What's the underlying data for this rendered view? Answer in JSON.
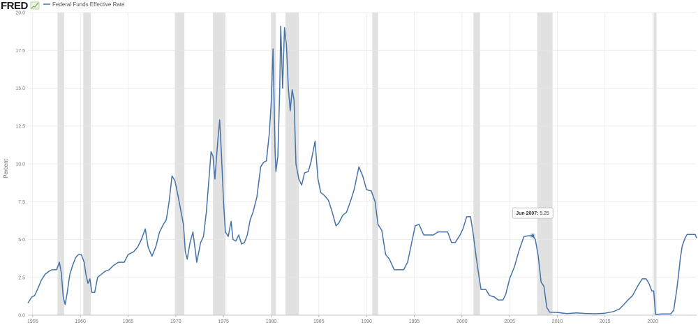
{
  "brand": {
    "logo_text": "FRED",
    "logo_icon": "fred-chart-sparkline-icon"
  },
  "colors": {
    "line": "#4572a7",
    "recession": "#e1e1e1",
    "grid": "#e6e6e6",
    "tooltip_border": "#aaaaaa"
  },
  "tooltip": {
    "label": "Jun 2007:",
    "value": "5.25",
    "x": 2007.42,
    "y": 5.25
  },
  "chart_data": {
    "type": "line",
    "title": "",
    "xlabel": "",
    "ylabel": "Percent",
    "xlim": [
      1954.5,
      2024.6
    ],
    "ylim": [
      0,
      20
    ],
    "yticks": [
      "0.0",
      "2.5",
      "5.0",
      "7.5",
      "10.0",
      "12.5",
      "15.0",
      "17.5",
      "20.0"
    ],
    "xticks": [
      "1955",
      "1960",
      "1965",
      "1970",
      "1975",
      "1980",
      "1985",
      "1990",
      "1995",
      "2000",
      "2005",
      "2010",
      "2015",
      "2020"
    ],
    "grid": true,
    "legend": "top-left",
    "recessions": [
      [
        1957.6,
        1958.3
      ],
      [
        1960.3,
        1961.1
      ],
      [
        1969.9,
        1970.9
      ],
      [
        1973.9,
        1975.2
      ],
      [
        1980.0,
        1980.5
      ],
      [
        1981.5,
        1982.9
      ],
      [
        1990.6,
        1991.2
      ],
      [
        2001.2,
        2001.9
      ],
      [
        2007.9,
        2009.5
      ],
      [
        2020.1,
        2020.4
      ]
    ],
    "series": [
      {
        "name": "Federal Funds Effective Rate",
        "points": [
          [
            1954.5,
            0.8
          ],
          [
            1954.9,
            1.2
          ],
          [
            1955.2,
            1.3
          ],
          [
            1955.5,
            1.7
          ],
          [
            1955.9,
            2.3
          ],
          [
            1956.3,
            2.7
          ],
          [
            1956.7,
            2.9
          ],
          [
            1957.0,
            3.0
          ],
          [
            1957.5,
            3.0
          ],
          [
            1957.8,
            3.5
          ],
          [
            1958.0,
            2.8
          ],
          [
            1958.2,
            1.2
          ],
          [
            1958.4,
            0.7
          ],
          [
            1958.6,
            1.4
          ],
          [
            1958.9,
            2.7
          ],
          [
            1959.2,
            3.3
          ],
          [
            1959.5,
            3.8
          ],
          [
            1959.8,
            4.0
          ],
          [
            1960.1,
            4.0
          ],
          [
            1960.4,
            3.5
          ],
          [
            1960.6,
            2.6
          ],
          [
            1960.8,
            2.1
          ],
          [
            1961.0,
            2.4
          ],
          [
            1961.2,
            1.5
          ],
          [
            1961.5,
            1.5
          ],
          [
            1961.8,
            2.5
          ],
          [
            1962.2,
            2.7
          ],
          [
            1962.6,
            2.9
          ],
          [
            1963.0,
            3.0
          ],
          [
            1963.5,
            3.3
          ],
          [
            1964.0,
            3.5
          ],
          [
            1964.6,
            3.5
          ],
          [
            1965.0,
            4.0
          ],
          [
            1965.6,
            4.2
          ],
          [
            1966.0,
            4.5
          ],
          [
            1966.4,
            5.0
          ],
          [
            1966.8,
            5.7
          ],
          [
            1967.1,
            4.5
          ],
          [
            1967.5,
            3.9
          ],
          [
            1967.9,
            4.5
          ],
          [
            1968.3,
            5.5
          ],
          [
            1968.7,
            6.0
          ],
          [
            1969.0,
            6.3
          ],
          [
            1969.3,
            7.5
          ],
          [
            1969.6,
            9.2
          ],
          [
            1969.9,
            8.9
          ],
          [
            1970.2,
            8.0
          ],
          [
            1970.5,
            7.0
          ],
          [
            1970.8,
            6.0
          ],
          [
            1971.0,
            4.2
          ],
          [
            1971.2,
            3.7
          ],
          [
            1971.5,
            4.8
          ],
          [
            1971.8,
            5.5
          ],
          [
            1972.0,
            4.5
          ],
          [
            1972.2,
            3.5
          ],
          [
            1972.6,
            4.8
          ],
          [
            1972.9,
            5.2
          ],
          [
            1973.2,
            6.8
          ],
          [
            1973.5,
            9.2
          ],
          [
            1973.7,
            10.8
          ],
          [
            1973.9,
            10.5
          ],
          [
            1974.1,
            9.0
          ],
          [
            1974.4,
            11.5
          ],
          [
            1974.6,
            12.9
          ],
          [
            1974.8,
            10.5
          ],
          [
            1975.0,
            7.5
          ],
          [
            1975.2,
            5.5
          ],
          [
            1975.5,
            5.2
          ],
          [
            1975.8,
            6.2
          ],
          [
            1976.0,
            5.0
          ],
          [
            1976.3,
            4.9
          ],
          [
            1976.6,
            5.3
          ],
          [
            1976.9,
            4.7
          ],
          [
            1977.2,
            4.8
          ],
          [
            1977.5,
            5.3
          ],
          [
            1977.8,
            6.3
          ],
          [
            1978.1,
            6.8
          ],
          [
            1978.5,
            7.8
          ],
          [
            1978.9,
            9.8
          ],
          [
            1979.2,
            10.1
          ],
          [
            1979.5,
            10.2
          ],
          [
            1979.8,
            12.0
          ],
          [
            1980.0,
            14.0
          ],
          [
            1980.2,
            17.6
          ],
          [
            1980.4,
            11.0
          ],
          [
            1980.5,
            9.5
          ],
          [
            1980.7,
            10.5
          ],
          [
            1980.9,
            15.0
          ],
          [
            1981.0,
            19.1
          ],
          [
            1981.2,
            15.0
          ],
          [
            1981.4,
            19.0
          ],
          [
            1981.6,
            17.8
          ],
          [
            1981.8,
            15.0
          ],
          [
            1982.0,
            13.5
          ],
          [
            1982.2,
            14.9
          ],
          [
            1982.4,
            14.2
          ],
          [
            1982.6,
            10.0
          ],
          [
            1982.9,
            9.0
          ],
          [
            1983.2,
            8.6
          ],
          [
            1983.5,
            9.4
          ],
          [
            1983.9,
            9.5
          ],
          [
            1984.2,
            10.2
          ],
          [
            1984.6,
            11.5
          ],
          [
            1984.9,
            9.0
          ],
          [
            1985.2,
            8.1
          ],
          [
            1985.6,
            7.9
          ],
          [
            1986.0,
            7.6
          ],
          [
            1986.4,
            6.8
          ],
          [
            1986.8,
            5.9
          ],
          [
            1987.1,
            6.1
          ],
          [
            1987.5,
            6.6
          ],
          [
            1987.9,
            6.8
          ],
          [
            1988.3,
            7.5
          ],
          [
            1988.7,
            8.3
          ],
          [
            1989.2,
            9.8
          ],
          [
            1989.6,
            9.2
          ],
          [
            1990.0,
            8.3
          ],
          [
            1990.5,
            8.2
          ],
          [
            1990.9,
            7.5
          ],
          [
            1991.2,
            6.0
          ],
          [
            1991.6,
            5.6
          ],
          [
            1992.0,
            4.0
          ],
          [
            1992.4,
            3.7
          ],
          [
            1992.9,
            3.0
          ],
          [
            1993.4,
            3.0
          ],
          [
            1993.9,
            3.0
          ],
          [
            1994.3,
            3.5
          ],
          [
            1994.7,
            4.7
          ],
          [
            1995.1,
            5.9
          ],
          [
            1995.5,
            6.0
          ],
          [
            1996.0,
            5.3
          ],
          [
            1996.5,
            5.3
          ],
          [
            1997.0,
            5.3
          ],
          [
            1997.5,
            5.5
          ],
          [
            1998.0,
            5.5
          ],
          [
            1998.5,
            5.5
          ],
          [
            1998.9,
            4.8
          ],
          [
            1999.3,
            4.8
          ],
          [
            1999.8,
            5.3
          ],
          [
            2000.1,
            5.7
          ],
          [
            2000.5,
            6.5
          ],
          [
            2000.9,
            6.5
          ],
          [
            2001.2,
            5.3
          ],
          [
            2001.5,
            3.8
          ],
          [
            2001.8,
            2.5
          ],
          [
            2002.0,
            1.7
          ],
          [
            2002.5,
            1.7
          ],
          [
            2002.9,
            1.3
          ],
          [
            2003.4,
            1.2
          ],
          [
            2003.8,
            1.0
          ],
          [
            2004.3,
            1.0
          ],
          [
            2004.6,
            1.4
          ],
          [
            2005.0,
            2.4
          ],
          [
            2005.5,
            3.2
          ],
          [
            2006.0,
            4.3
          ],
          [
            2006.5,
            5.2
          ],
          [
            2007.0,
            5.25
          ],
          [
            2007.42,
            5.25
          ],
          [
            2007.7,
            5.0
          ],
          [
            2008.0,
            3.9
          ],
          [
            2008.3,
            2.2
          ],
          [
            2008.6,
            1.9
          ],
          [
            2008.9,
            0.5
          ],
          [
            2009.2,
            0.2
          ],
          [
            2010.0,
            0.18
          ],
          [
            2011.0,
            0.1
          ],
          [
            2012.0,
            0.15
          ],
          [
            2013.0,
            0.11
          ],
          [
            2014.0,
            0.09
          ],
          [
            2015.0,
            0.13
          ],
          [
            2015.9,
            0.24
          ],
          [
            2016.5,
            0.4
          ],
          [
            2016.9,
            0.65
          ],
          [
            2017.4,
            1.0
          ],
          [
            2017.9,
            1.3
          ],
          [
            2018.4,
            1.9
          ],
          [
            2018.9,
            2.4
          ],
          [
            2019.3,
            2.4
          ],
          [
            2019.6,
            2.1
          ],
          [
            2019.9,
            1.6
          ],
          [
            2020.1,
            1.6
          ],
          [
            2020.3,
            0.05
          ],
          [
            2021.0,
            0.08
          ],
          [
            2021.9,
            0.08
          ],
          [
            2022.2,
            0.33
          ],
          [
            2022.5,
            1.6
          ],
          [
            2022.7,
            2.6
          ],
          [
            2022.9,
            3.8
          ],
          [
            2023.1,
            4.6
          ],
          [
            2023.4,
            5.1
          ],
          [
            2023.6,
            5.33
          ],
          [
            2024.0,
            5.33
          ],
          [
            2024.45,
            5.33
          ],
          [
            2024.6,
            5.1
          ]
        ]
      }
    ]
  }
}
